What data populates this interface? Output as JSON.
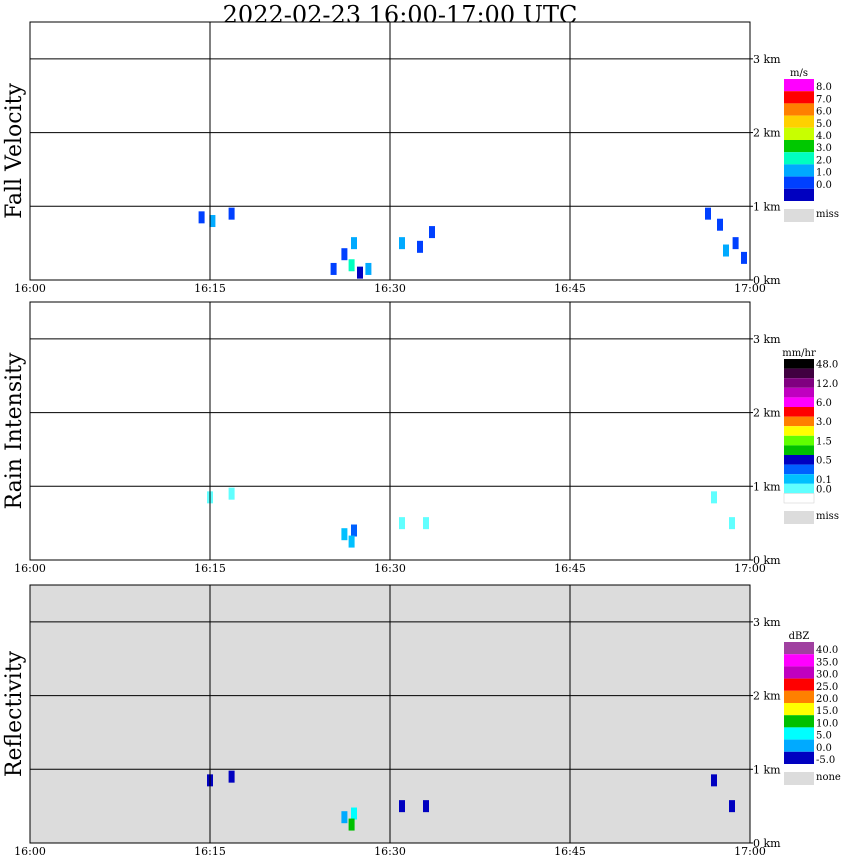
{
  "title": "2022-02-23  16:00-17:00 UTC",
  "chart_data": [
    {
      "type": "heatmap",
      "ylabel": "Fall Velocity",
      "legend_unit": "m/s",
      "x_ticks": [
        "16:00",
        "16:15",
        "16:30",
        "16:45",
        "17:00"
      ],
      "y_ticks": [
        "0 km",
        "1 km",
        "2 km",
        "3 km"
      ],
      "xlim": [
        0,
        60
      ],
      "ylim": [
        0,
        3.5
      ],
      "grid": true,
      "background": "#ffffff",
      "legend_labels": [
        "8.0",
        "7.0",
        "6.0",
        "5.0",
        "4.0",
        "3.0",
        "2.0",
        "1.0",
        "0.0"
      ],
      "legend_colors": [
        "#ff00ff",
        "#ff0000",
        "#ff8000",
        "#ffd000",
        "#c8ff00",
        "#00c800",
        "#00ffc0",
        "#00aaff",
        "#0040ff",
        "#0000c0"
      ],
      "missing_label": "miss",
      "missing_color": "#dcdcdc",
      "points": [
        {
          "t": 15.2,
          "h": 0.8,
          "c": 7
        },
        {
          "t": 14.3,
          "h": 0.85,
          "c": 8
        },
        {
          "t": 16.8,
          "h": 0.9,
          "c": 8
        },
        {
          "t": 26.2,
          "h": 0.35,
          "c": 8
        },
        {
          "t": 27.0,
          "h": 0.5,
          "c": 7
        },
        {
          "t": 26.8,
          "h": 0.2,
          "c": 6
        },
        {
          "t": 28.2,
          "h": 0.15,
          "c": 7
        },
        {
          "t": 27.5,
          "h": 0.1,
          "c": 9
        },
        {
          "t": 25.3,
          "h": 0.15,
          "c": 8
        },
        {
          "t": 31.0,
          "h": 0.5,
          "c": 7
        },
        {
          "t": 32.5,
          "h": 0.45,
          "c": 8
        },
        {
          "t": 33.5,
          "h": 0.65,
          "c": 8
        },
        {
          "t": 56.5,
          "h": 0.9,
          "c": 8
        },
        {
          "t": 57.5,
          "h": 0.75,
          "c": 8
        },
        {
          "t": 58.8,
          "h": 0.5,
          "c": 8
        },
        {
          "t": 59.5,
          "h": 0.3,
          "c": 8
        },
        {
          "t": 58.0,
          "h": 0.4,
          "c": 7
        }
      ]
    },
    {
      "type": "heatmap",
      "ylabel": "Rain Intensity",
      "legend_unit": "mm/hr",
      "x_ticks": [
        "16:00",
        "16:15",
        "16:30",
        "16:45",
        "17:00"
      ],
      "y_ticks": [
        "0 km",
        "1 km",
        "2 km",
        "3 km"
      ],
      "xlim": [
        0,
        60
      ],
      "ylim": [
        0,
        3.5
      ],
      "grid": true,
      "background": "#ffffff",
      "legend_labels": [
        "48.0",
        "",
        "12.0",
        "",
        "6.0",
        "",
        "3.0",
        "",
        "1.5",
        "",
        "0.5",
        "",
        "0.1",
        "0.0"
      ],
      "legend_colors": [
        "#000000",
        "#400040",
        "#800080",
        "#c000c0",
        "#ff00ff",
        "#ff0000",
        "#ff8000",
        "#ffff00",
        "#60ff00",
        "#00c000",
        "#0000c0",
        "#0060ff",
        "#00c0ff",
        "#60ffff",
        "#ffffff"
      ],
      "missing_label": "miss",
      "missing_color": "#dcdcdc",
      "points": [
        {
          "t": 15.0,
          "h": 0.85,
          "c": 13
        },
        {
          "t": 16.8,
          "h": 0.9,
          "c": 13
        },
        {
          "t": 26.2,
          "h": 0.35,
          "c": 12
        },
        {
          "t": 27.0,
          "h": 0.4,
          "c": 11
        },
        {
          "t": 26.8,
          "h": 0.25,
          "c": 12
        },
        {
          "t": 31.0,
          "h": 0.5,
          "c": 13
        },
        {
          "t": 33.0,
          "h": 0.5,
          "c": 13
        },
        {
          "t": 57.0,
          "h": 0.85,
          "c": 13
        },
        {
          "t": 58.5,
          "h": 0.5,
          "c": 13
        }
      ]
    },
    {
      "type": "heatmap",
      "ylabel": "Reflectivity",
      "legend_unit": "dBZ",
      "x_ticks": [
        "16:00",
        "16:15",
        "16:30",
        "16:45",
        "17:00"
      ],
      "y_ticks": [
        "0 km",
        "1 km",
        "2 km",
        "3 km"
      ],
      "xlim": [
        0,
        60
      ],
      "ylim": [
        0,
        3.5
      ],
      "grid": true,
      "background": "#dcdcdc",
      "legend_labels": [
        "40.0",
        "35.0",
        "30.0",
        "25.0",
        "20.0",
        "15.0",
        "10.0",
        "5.0",
        "0.0",
        "-5.0"
      ],
      "legend_colors": [
        "#a040a0",
        "#ff00ff",
        "#c000c0",
        "#ff0000",
        "#ff8000",
        "#ffff00",
        "#00c000",
        "#00ffff",
        "#00aaff",
        "#0000c0"
      ],
      "missing_label": "none",
      "missing_color": "#dcdcdc",
      "points": [
        {
          "t": 15.0,
          "h": 0.85,
          "c": 9
        },
        {
          "t": 16.8,
          "h": 0.9,
          "c": 9
        },
        {
          "t": 26.2,
          "h": 0.35,
          "c": 8
        },
        {
          "t": 27.0,
          "h": 0.4,
          "c": 7
        },
        {
          "t": 26.8,
          "h": 0.25,
          "c": 6
        },
        {
          "t": 31.0,
          "h": 0.5,
          "c": 9
        },
        {
          "t": 33.0,
          "h": 0.5,
          "c": 9
        },
        {
          "t": 57.0,
          "h": 0.85,
          "c": 9
        },
        {
          "t": 58.5,
          "h": 0.5,
          "c": 9
        }
      ]
    }
  ]
}
